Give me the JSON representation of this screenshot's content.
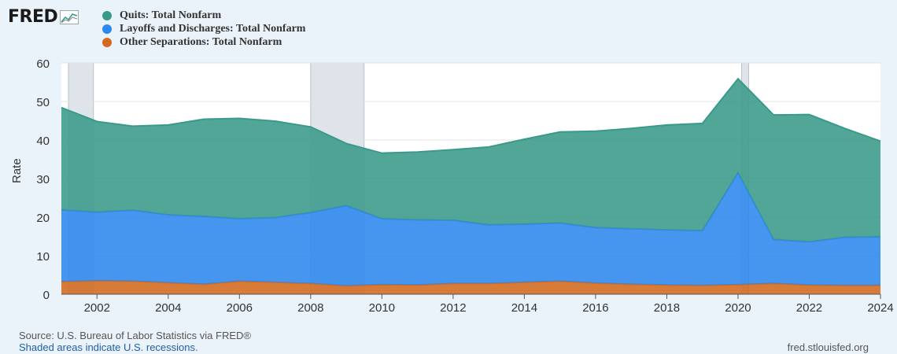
{
  "logo": {
    "text": "FRED"
  },
  "chart_data": {
    "type": "area",
    "stacked": true,
    "ylabel": "Rate",
    "ylim": [
      0,
      60
    ],
    "yticks": [
      0,
      10,
      20,
      30,
      40,
      50,
      60
    ],
    "xlim": [
      2001,
      2024
    ],
    "xticks": [
      2002,
      2004,
      2006,
      2008,
      2010,
      2012,
      2014,
      2016,
      2018,
      2020,
      2022,
      2024
    ],
    "grid": true,
    "legend_position": "top-left",
    "x": [
      2001,
      2002,
      2003,
      2004,
      2005,
      2006,
      2007,
      2008,
      2009,
      2010,
      2011,
      2012,
      2013,
      2014,
      2015,
      2016,
      2017,
      2018,
      2019,
      2020,
      2021,
      2022,
      2023,
      2024
    ],
    "series": [
      {
        "name": "Other Separations: Total Nonfarm",
        "color": "#d2691e",
        "values": [
          3.3,
          3.5,
          3.4,
          3.0,
          2.6,
          3.4,
          3.1,
          2.8,
          2.2,
          2.5,
          2.4,
          2.8,
          2.8,
          3.1,
          3.4,
          2.9,
          2.6,
          2.4,
          2.3,
          2.5,
          2.8,
          2.4,
          2.3,
          2.3
        ]
      },
      {
        "name": "Layoffs and Discharges: Total Nonfarm",
        "color": "#2c88ee",
        "values": [
          18.6,
          17.8,
          18.4,
          17.6,
          17.6,
          16.2,
          16.8,
          18.4,
          20.8,
          17.1,
          16.9,
          16.4,
          15.2,
          15.1,
          15.1,
          14.4,
          14.4,
          14.3,
          14.2,
          29.0,
          11.4,
          11.2,
          12.5,
          12.6
        ]
      },
      {
        "name": "Quits: Total Nonfarm",
        "color": "#3a9a8a",
        "values": [
          26.5,
          23.5,
          21.8,
          23.3,
          25.2,
          26.0,
          25.0,
          22.2,
          16.1,
          17.0,
          17.6,
          18.3,
          20.2,
          22.0,
          23.6,
          25.0,
          26.0,
          27.2,
          27.8,
          24.4,
          32.3,
          33.0,
          28.2,
          24.8
        ]
      }
    ],
    "recessions": [
      [
        2001.2,
        2001.9
      ],
      [
        2008.0,
        2009.5
      ],
      [
        2020.1,
        2020.3
      ]
    ]
  },
  "footer": {
    "source": "Source: U.S. Bureau of Labor Statistics via FRED®",
    "shaded_note": "Shaded areas indicate U.S. recessions.",
    "site": "fred.stlouisfed.org"
  }
}
